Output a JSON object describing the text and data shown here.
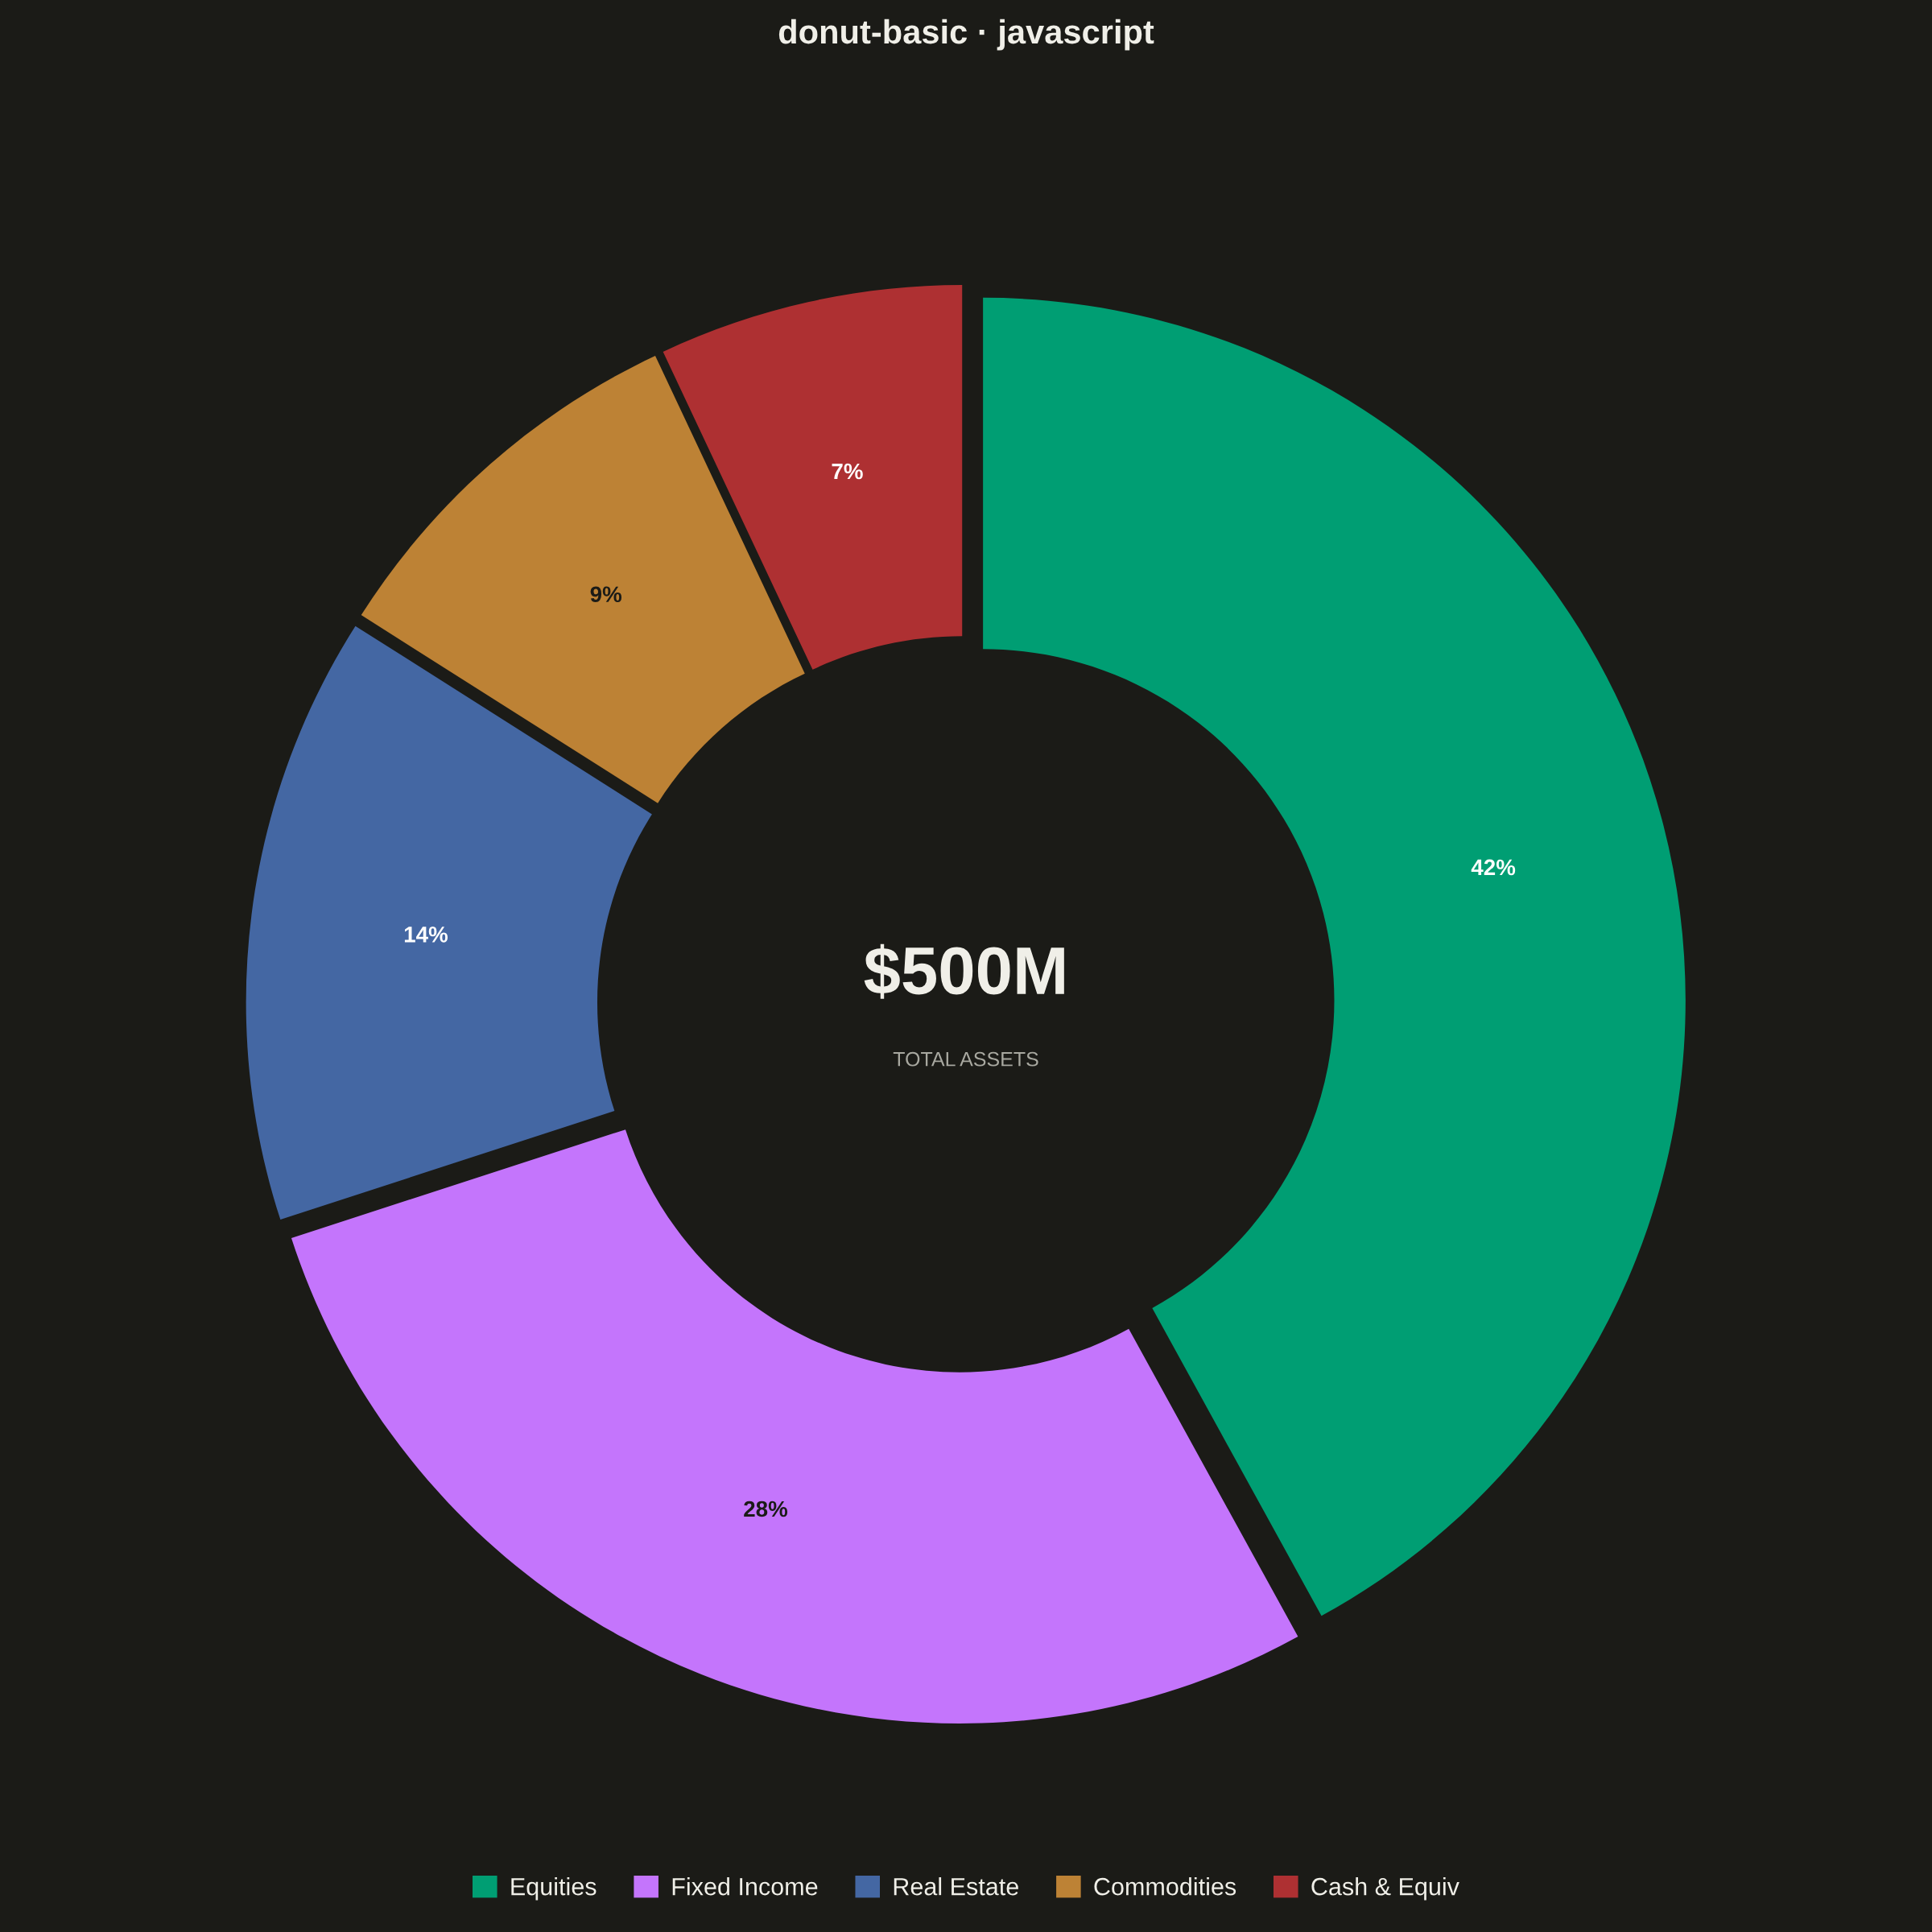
{
  "chart_data": {
    "type": "donut",
    "title": "donut-basic · javascript",
    "categories": [
      "Equities",
      "Fixed Income",
      "Real Estate",
      "Commodities",
      "Cash & Equiv"
    ],
    "values": [
      42,
      28,
      14,
      9,
      7
    ],
    "colors": [
      "#009e73",
      "#c475fc",
      "#4467a3",
      "#bd8235",
      "#ae3032"
    ],
    "value_labels": [
      "42%",
      "28%",
      "14%",
      "9%",
      "7%"
    ],
    "annotations": [
      "$500M",
      "TOTAL ASSETS"
    ],
    "legend": "bottom"
  }
}
